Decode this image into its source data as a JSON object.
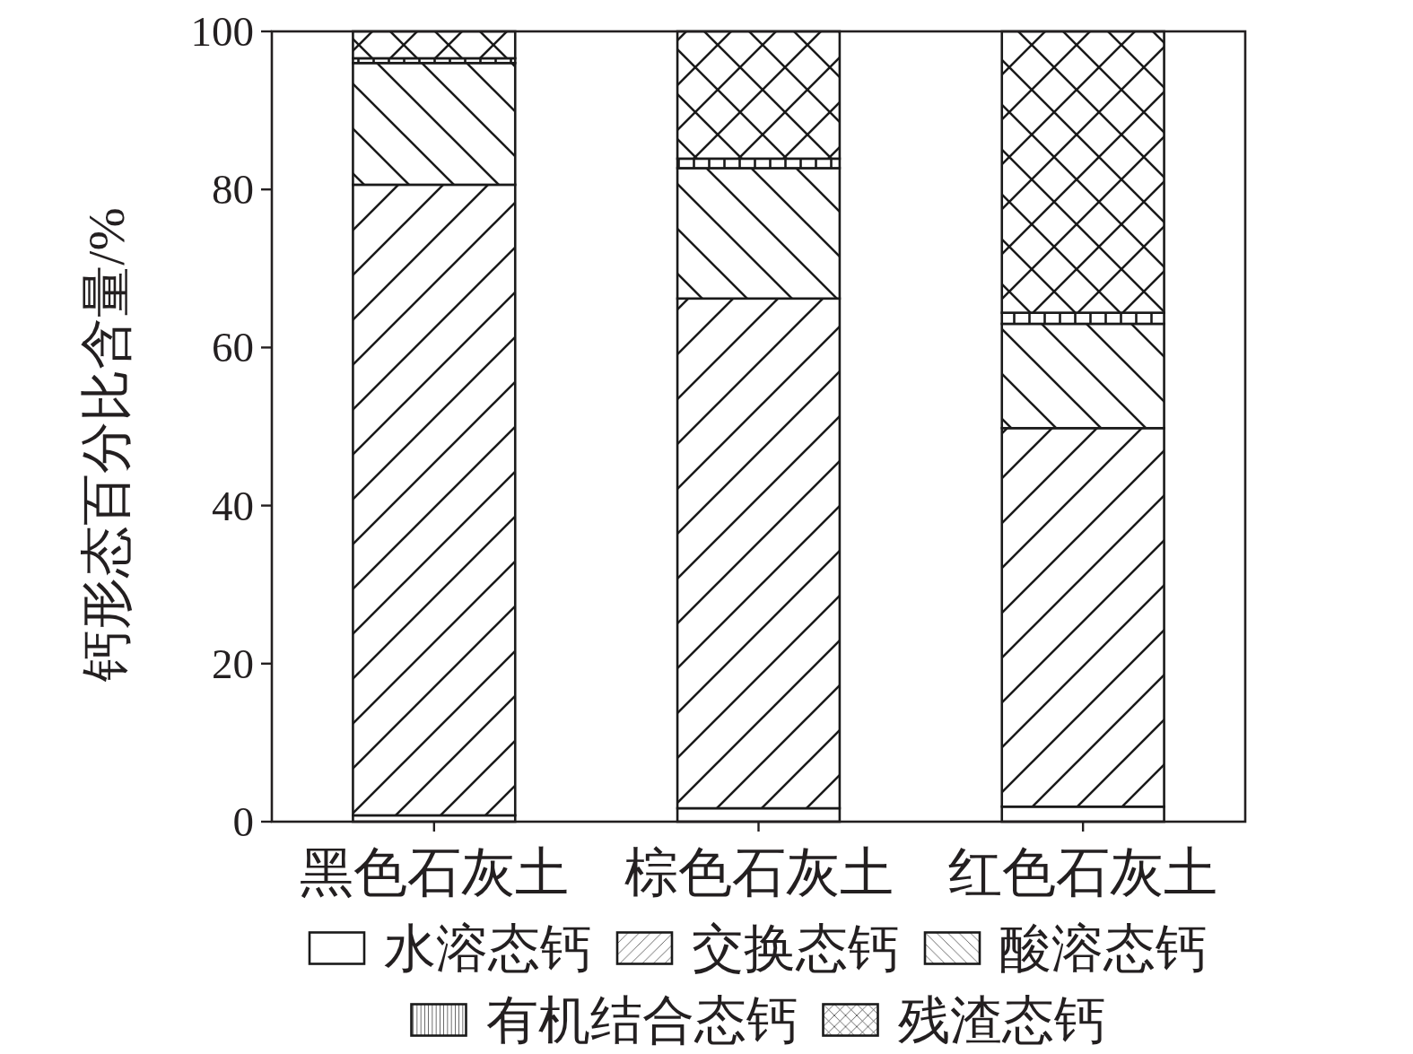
{
  "chart_data": {
    "type": "bar",
    "stacked": true,
    "ylabel": "钙形态百分比含量/%",
    "categories": [
      "黑色石灰土",
      "棕色石灰土",
      "红色石灰土"
    ],
    "ylim": [
      0,
      100
    ],
    "yticks": [
      0,
      20,
      40,
      60,
      80,
      100
    ],
    "legend": "bottom",
    "series": [
      {
        "name": "水溶态钙",
        "color": "#1a1a1a",
        "values": [
          0.8,
          1.7,
          1.9
        ]
      },
      {
        "name": "交换态钙",
        "color": "#1a1a1a",
        "values": [
          79.8,
          64.5,
          47.9
        ]
      },
      {
        "name": "酸溶态钙",
        "color": "#1a1a1a",
        "values": [
          15.4,
          16.5,
          13.2
        ]
      },
      {
        "name": "有机结合态钙",
        "color": "#1a1a1a",
        "values": [
          0.6,
          1.2,
          1.4
        ]
      },
      {
        "name": "残渣态钙",
        "color": "#1a1a1a",
        "values": [
          3.4,
          16.1,
          35.6
        ]
      }
    ]
  }
}
